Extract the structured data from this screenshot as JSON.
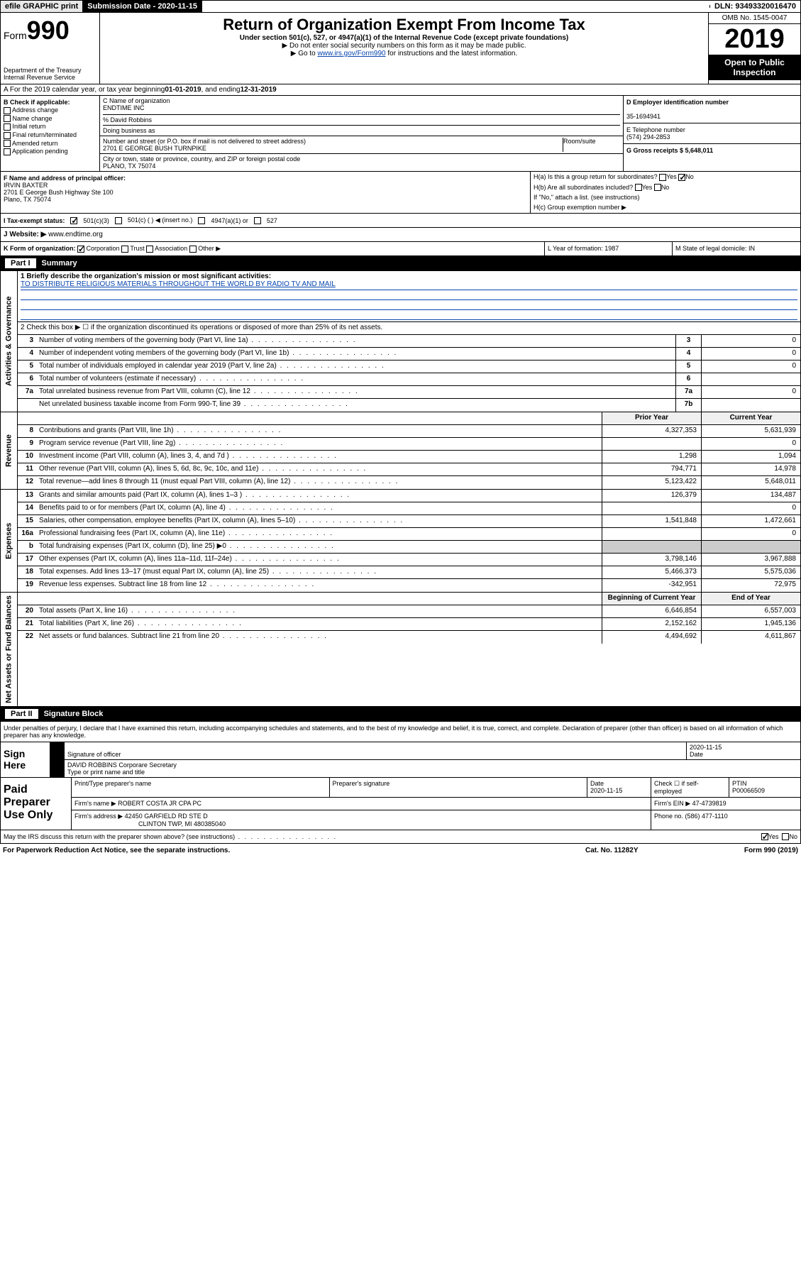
{
  "topbar": {
    "efile_label": "efile GRAPHIC print",
    "sub_label": "Submission Date - 2020-11-15",
    "dln_label": "DLN: 93493320016470"
  },
  "header": {
    "form_word": "Form",
    "form_num": "990",
    "dept": "Department of the Treasury Internal Revenue Service",
    "title": "Return of Organization Exempt From Income Tax",
    "sub": "Under section 501(c), 527, or 4947(a)(1) of the Internal Revenue Code (except private foundations)",
    "note1": "▶ Do not enter social security numbers on this form as it may be made public.",
    "note2_pre": "▶ Go to ",
    "note2_link": "www.irs.gov/Form990",
    "note2_post": " for instructions and the latest information.",
    "omb": "OMB No. 1545-0047",
    "year": "2019",
    "open": "Open to Public Inspection"
  },
  "rowA": {
    "text_pre": "A For the 2019 calendar year, or tax year beginning ",
    "begin": "01-01-2019",
    "mid": " , and ending ",
    "end": "12-31-2019"
  },
  "sectionB": {
    "label": "B Check if applicable:",
    "opts": [
      "Address change",
      "Name change",
      "Initial return",
      "Final return/terminated",
      "Amended return",
      "Application pending"
    ]
  },
  "sectionC": {
    "name_label": "C Name of organization",
    "org_name": "ENDTIME INC",
    "care_of": "% David Robbins",
    "dba_label": "Doing business as",
    "addr_label": "Number and street (or P.O. box if mail is not delivered to street address)",
    "room_label": "Room/suite",
    "addr": "2701 E GEORGE BUSH TURNPIKE",
    "city_label": "City or town, state or province, country, and ZIP or foreign postal code",
    "city": "PLANO, TX  75074"
  },
  "sectionD": {
    "label": "D Employer identification number",
    "val": "35-1694941"
  },
  "sectionE": {
    "label": "E Telephone number",
    "val": "(574) 294-2853"
  },
  "sectionG": {
    "label": "G Gross receipts $ 5,648,011"
  },
  "sectionF": {
    "label": "F Name and address of principal officer:",
    "name": "IRVIN BAXTER",
    "addr1": "2701 E George Bush Highway Ste 100",
    "addr2": "Plano, TX  75074"
  },
  "sectionH": {
    "a": "H(a) Is this a group return for subordinates?",
    "a_yes": "Yes",
    "a_no": "No",
    "b": "H(b) Are all subordinates included?",
    "b_yes": "Yes",
    "b_no": "No",
    "b_note": "If \"No,\" attach a list. (see instructions)",
    "c": "H(c) Group exemption number ▶"
  },
  "rowI": {
    "label": "I Tax-exempt status:",
    "o1": "501(c)(3)",
    "o2": "501(c) (  ) ◀ (insert no.)",
    "o3": "4947(a)(1) or",
    "o4": "527"
  },
  "rowJ": {
    "label": "J Website: ▶",
    "val": "www.endtime.org"
  },
  "rowK": {
    "k": "K Form of organization:",
    "o1": "Corporation",
    "o2": "Trust",
    "o3": "Association",
    "o4": "Other ▶",
    "l": "L Year of formation: 1987",
    "m": "M State of legal domicile: IN"
  },
  "part1": {
    "num": "Part I",
    "title": "Summary"
  },
  "gov": {
    "label": "Activities & Governance",
    "l1_label": "1 Briefly describe the organization's mission or most significant activities:",
    "l1_text": "TO DISTRIBUTE RELIGIOUS MATERIALS THROUGHOUT THE WORLD BY RADIO TV AND MAIL",
    "l2": "2 Check this box ▶ ☐ if the organization discontinued its operations or disposed of more than 25% of its net assets.",
    "rows": [
      {
        "n": "3",
        "label": "Number of voting members of the governing body (Part VI, line 1a)",
        "c": "3",
        "v": "0"
      },
      {
        "n": "4",
        "label": "Number of independent voting members of the governing body (Part VI, line 1b)",
        "c": "4",
        "v": "0"
      },
      {
        "n": "5",
        "label": "Total number of individuals employed in calendar year 2019 (Part V, line 2a)",
        "c": "5",
        "v": "0"
      },
      {
        "n": "6",
        "label": "Total number of volunteers (estimate if necessary)",
        "c": "6",
        "v": ""
      },
      {
        "n": "7a",
        "label": "Total unrelated business revenue from Part VIII, column (C), line 12",
        "c": "7a",
        "v": "0"
      },
      {
        "n": "",
        "label": "Net unrelated business taxable income from Form 990-T, line 39",
        "c": "7b",
        "v": ""
      }
    ]
  },
  "rev": {
    "label": "Revenue",
    "hdr_prior": "Prior Year",
    "hdr_curr": "Current Year",
    "rows": [
      {
        "n": "8",
        "label": "Contributions and grants (Part VIII, line 1h)",
        "p": "4,327,353",
        "c": "5,631,939"
      },
      {
        "n": "9",
        "label": "Program service revenue (Part VIII, line 2g)",
        "p": "",
        "c": "0"
      },
      {
        "n": "10",
        "label": "Investment income (Part VIII, column (A), lines 3, 4, and 7d )",
        "p": "1,298",
        "c": "1,094"
      },
      {
        "n": "11",
        "label": "Other revenue (Part VIII, column (A), lines 5, 6d, 8c, 9c, 10c, and 11e)",
        "p": "794,771",
        "c": "14,978"
      },
      {
        "n": "12",
        "label": "Total revenue—add lines 8 through 11 (must equal Part VIII, column (A), line 12)",
        "p": "5,123,422",
        "c": "5,648,011"
      }
    ]
  },
  "exp": {
    "label": "Expenses",
    "rows": [
      {
        "n": "13",
        "label": "Grants and similar amounts paid (Part IX, column (A), lines 1–3 )",
        "p": "126,379",
        "c": "134,487"
      },
      {
        "n": "14",
        "label": "Benefits paid to or for members (Part IX, column (A), line 4)",
        "p": "",
        "c": "0"
      },
      {
        "n": "15",
        "label": "Salaries, other compensation, employee benefits (Part IX, column (A), lines 5–10)",
        "p": "1,541,848",
        "c": "1,472,661"
      },
      {
        "n": "16a",
        "label": "Professional fundraising fees (Part IX, column (A), line 11e)",
        "p": "",
        "c": "0"
      },
      {
        "n": "b",
        "label": "Total fundraising expenses (Part IX, column (D), line 25) ▶0",
        "p": "—",
        "c": "—"
      },
      {
        "n": "17",
        "label": "Other expenses (Part IX, column (A), lines 11a–11d, 11f–24e)",
        "p": "3,798,146",
        "c": "3,967,888"
      },
      {
        "n": "18",
        "label": "Total expenses. Add lines 13–17 (must equal Part IX, column (A), line 25)",
        "p": "5,466,373",
        "c": "5,575,036"
      },
      {
        "n": "19",
        "label": "Revenue less expenses. Subtract line 18 from line 12",
        "p": "-342,951",
        "c": "72,975"
      }
    ]
  },
  "net": {
    "label": "Net Assets or Fund Balances",
    "hdr_begin": "Beginning of Current Year",
    "hdr_end": "End of Year",
    "rows": [
      {
        "n": "20",
        "label": "Total assets (Part X, line 16)",
        "p": "6,646,854",
        "c": "6,557,003"
      },
      {
        "n": "21",
        "label": "Total liabilities (Part X, line 26)",
        "p": "2,152,162",
        "c": "1,945,136"
      },
      {
        "n": "22",
        "label": "Net assets or fund balances. Subtract line 21 from line 20",
        "p": "4,494,692",
        "c": "4,611,867"
      }
    ]
  },
  "part2": {
    "num": "Part II",
    "title": "Signature Block"
  },
  "sig": {
    "perjury": "Under penalties of perjury, I declare that I have examined this return, including accompanying schedules and statements, and to the best of my knowledge and belief, it is true, correct, and complete. Declaration of preparer (other than officer) is based on all information of which preparer has any knowledge.",
    "sign_here": "Sign Here",
    "sig_officer": "Signature of officer",
    "date": "2020-11-15",
    "date_label": "Date",
    "name": "DAVID ROBBINS Corporare Secretary",
    "name_label": "Type or print name and title"
  },
  "prep": {
    "title": "Paid Preparer Use Only",
    "h1": "Print/Type preparer's name",
    "h2": "Preparer's signature",
    "h3": "Date",
    "h4": "Check ☐ if self-employed",
    "h5": "PTIN",
    "date": "2020-11-15",
    "ptin": "P00066509",
    "firm_label": "Firm's name  ▶",
    "firm": "ROBERT COSTA JR CPA PC",
    "ein_label": "Firm's EIN ▶ 47-4739819",
    "addr_label": "Firm's address ▶",
    "addr1": "42450 GARFIELD RD STE D",
    "addr2": "CLINTON TWP, MI  480385040",
    "phone_label": "Phone no. (586) 477-1110"
  },
  "footer": {
    "discuss": "May the IRS discuss this return with the preparer shown above? (see instructions)",
    "yes": "Yes",
    "no": "No",
    "paperwork": "For Paperwork Reduction Act Notice, see the separate instructions.",
    "cat": "Cat. No. 11282Y",
    "form": "Form 990 (2019)"
  }
}
